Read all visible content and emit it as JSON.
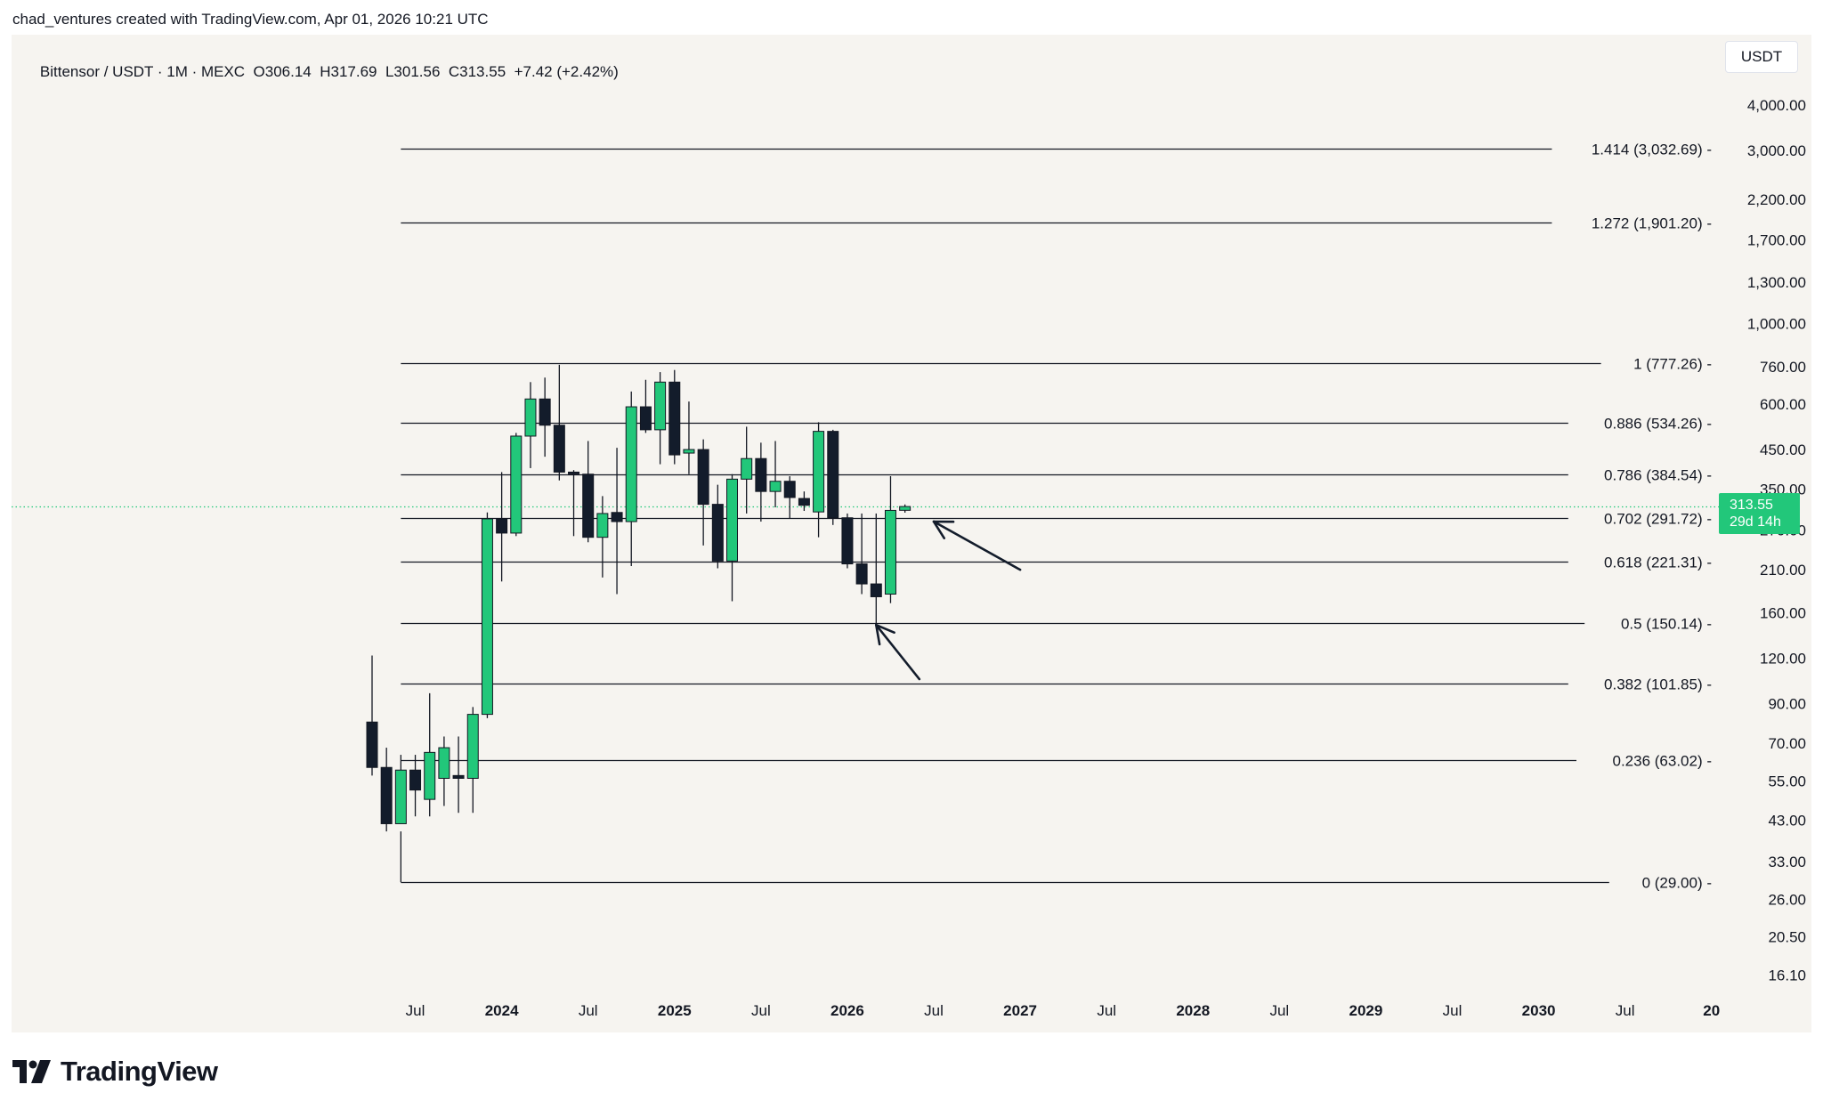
{
  "attribution": "chad_ventures created with TradingView.com, Apr 01, 2026 10:21 UTC",
  "legend": {
    "symbol": "Bittensor / USDT · 1M · MEXC",
    "open": "O306.14",
    "high": "H317.69",
    "low": "L301.56",
    "close": "C313.55",
    "change": "+7.42 (+2.42%)"
  },
  "currency": "USDT",
  "price_tag": {
    "price": "313.55",
    "countdown": "29d 14h"
  },
  "brand": "TradingView",
  "colors": {
    "background": "#f6f4f0",
    "up": "#22c77a",
    "down": "#131c2b",
    "fib_line": "#131722",
    "current_price_line": "#22c77a"
  },
  "chart_data": {
    "type": "candlestick",
    "title": "Bittensor / USDT · 1M · MEXC",
    "y_scale": "log",
    "ylim": [
      14.5,
      4600
    ],
    "y_ticks": [
      {
        "value": 4000,
        "label": "4,000.00"
      },
      {
        "value": 3000,
        "label": "3,000.00"
      },
      {
        "value": 2200,
        "label": "2,200.00"
      },
      {
        "value": 1700,
        "label": "1,700.00"
      },
      {
        "value": 1300,
        "label": "1,300.00"
      },
      {
        "value": 1000,
        "label": "1,000.00"
      },
      {
        "value": 760,
        "label": "760.00"
      },
      {
        "value": 600,
        "label": "600.00"
      },
      {
        "value": 450,
        "label": "450.00"
      },
      {
        "value": 350,
        "label": "350.00"
      },
      {
        "value": 270,
        "label": "270.00"
      },
      {
        "value": 210,
        "label": "210.00"
      },
      {
        "value": 160,
        "label": "160.00"
      },
      {
        "value": 120,
        "label": "120.00"
      },
      {
        "value": 90,
        "label": "90.00"
      },
      {
        "value": 70,
        "label": "70.00"
      },
      {
        "value": 55,
        "label": "55.00"
      },
      {
        "value": 43,
        "label": "43.00"
      },
      {
        "value": 33,
        "label": "33.00"
      },
      {
        "value": 26,
        "label": "26.00"
      },
      {
        "value": 20.5,
        "label": "20.50"
      },
      {
        "value": 16.1,
        "label": "16.10"
      }
    ],
    "x_ticks": [
      {
        "month": "2023-07",
        "label": "Jul",
        "bold": false
      },
      {
        "month": "2024-01",
        "label": "2024",
        "bold": true
      },
      {
        "month": "2024-07",
        "label": "Jul",
        "bold": false
      },
      {
        "month": "2025-01",
        "label": "2025",
        "bold": true
      },
      {
        "month": "2025-07",
        "label": "Jul",
        "bold": false
      },
      {
        "month": "2026-01",
        "label": "2026",
        "bold": true
      },
      {
        "month": "2026-07",
        "label": "Jul",
        "bold": false
      },
      {
        "month": "2027-01",
        "label": "2027",
        "bold": true
      },
      {
        "month": "2027-07",
        "label": "Jul",
        "bold": false
      },
      {
        "month": "2028-01",
        "label": "2028",
        "bold": true
      },
      {
        "month": "2028-07",
        "label": "Jul",
        "bold": false
      },
      {
        "month": "2029-01",
        "label": "2029",
        "bold": true
      },
      {
        "month": "2029-07",
        "label": "Jul",
        "bold": false
      },
      {
        "month": "2030-01",
        "label": "2030",
        "bold": true
      },
      {
        "month": "2030-07",
        "label": "Jul",
        "bold": false
      },
      {
        "month": "2031-01",
        "label": "20",
        "bold": true
      }
    ],
    "candles": [
      {
        "month": "2023-04",
        "o": 80,
        "h": 122,
        "l": 57,
        "c": 60
      },
      {
        "month": "2023-05",
        "o": 60,
        "h": 68,
        "l": 40,
        "c": 42
      },
      {
        "month": "2023-06",
        "o": 42,
        "h": 65,
        "l": 42,
        "c": 59
      },
      {
        "month": "2023-07",
        "o": 59,
        "h": 65,
        "l": 44,
        "c": 52
      },
      {
        "month": "2023-08",
        "o": 49,
        "h": 96,
        "l": 44,
        "c": 66
      },
      {
        "month": "2023-09",
        "o": 56,
        "h": 73,
        "l": 47,
        "c": 68
      },
      {
        "month": "2023-10",
        "o": 57,
        "h": 73,
        "l": 45,
        "c": 56
      },
      {
        "month": "2023-11",
        "o": 56,
        "h": 88,
        "l": 45,
        "c": 84
      },
      {
        "month": "2023-12",
        "o": 84,
        "h": 302,
        "l": 82,
        "c": 290
      },
      {
        "month": "2024-01",
        "o": 290,
        "h": 390,
        "l": 195,
        "c": 265
      },
      {
        "month": "2024-02",
        "o": 265,
        "h": 500,
        "l": 260,
        "c": 490
      },
      {
        "month": "2024-03",
        "o": 490,
        "h": 690,
        "l": 400,
        "c": 620
      },
      {
        "month": "2024-04",
        "o": 620,
        "h": 710,
        "l": 430,
        "c": 525
      },
      {
        "month": "2024-05",
        "o": 525,
        "h": 770,
        "l": 370,
        "c": 390
      },
      {
        "month": "2024-06",
        "o": 390,
        "h": 395,
        "l": 260,
        "c": 388
      },
      {
        "month": "2024-07",
        "o": 385,
        "h": 475,
        "l": 250,
        "c": 258
      },
      {
        "month": "2024-08",
        "o": 258,
        "h": 335,
        "l": 200,
        "c": 300
      },
      {
        "month": "2024-09",
        "o": 302,
        "h": 455,
        "l": 180,
        "c": 285
      },
      {
        "month": "2024-10",
        "o": 285,
        "h": 650,
        "l": 215,
        "c": 590
      },
      {
        "month": "2024-11",
        "o": 590,
        "h": 700,
        "l": 500,
        "c": 510
      },
      {
        "month": "2024-12",
        "o": 510,
        "h": 735,
        "l": 410,
        "c": 690
      },
      {
        "month": "2025-01",
        "o": 690,
        "h": 745,
        "l": 410,
        "c": 435
      },
      {
        "month": "2025-02",
        "o": 440,
        "h": 610,
        "l": 385,
        "c": 450
      },
      {
        "month": "2025-03",
        "o": 450,
        "h": 480,
        "l": 245,
        "c": 318
      },
      {
        "month": "2025-04",
        "o": 318,
        "h": 360,
        "l": 212,
        "c": 222
      },
      {
        "month": "2025-05",
        "o": 222,
        "h": 385,
        "l": 172,
        "c": 373
      },
      {
        "month": "2025-06",
        "o": 373,
        "h": 520,
        "l": 300,
        "c": 425
      },
      {
        "month": "2025-07",
        "o": 425,
        "h": 470,
        "l": 285,
        "c": 345
      },
      {
        "month": "2025-08",
        "o": 345,
        "h": 475,
        "l": 312,
        "c": 368
      },
      {
        "month": "2025-09",
        "o": 368,
        "h": 380,
        "l": 290,
        "c": 332
      },
      {
        "month": "2025-10",
        "o": 330,
        "h": 345,
        "l": 305,
        "c": 316
      },
      {
        "month": "2025-11",
        "o": 303,
        "h": 535,
        "l": 258,
        "c": 505
      },
      {
        "month": "2025-12",
        "o": 505,
        "h": 510,
        "l": 279,
        "c": 292
      },
      {
        "month": "2026-01",
        "o": 292,
        "h": 300,
        "l": 212,
        "c": 218
      },
      {
        "month": "2026-02",
        "o": 218,
        "h": 300,
        "l": 180,
        "c": 192
      },
      {
        "month": "2026-03",
        "o": 192,
        "h": 300,
        "l": 148,
        "c": 177
      },
      {
        "month": "2026-04",
        "o": 180,
        "h": 380,
        "l": 170,
        "c": 306
      },
      {
        "month": "2026-05",
        "o": 306.14,
        "h": 317.69,
        "l": 301.56,
        "c": 313.55
      }
    ],
    "fib_levels": [
      {
        "ratio": "0",
        "price": 29.0,
        "label": "0 (29.00)"
      },
      {
        "ratio": "0.236",
        "price": 63.02,
        "label": "0.236 (63.02)"
      },
      {
        "ratio": "0.382",
        "price": 101.85,
        "label": "0.382 (101.85)"
      },
      {
        "ratio": "0.5",
        "price": 150.14,
        "label": "0.5 (150.14)"
      },
      {
        "ratio": "0.618",
        "price": 221.31,
        "label": "0.618 (221.31)"
      },
      {
        "ratio": "0.702",
        "price": 291.72,
        "label": "0.702 (291.72)"
      },
      {
        "ratio": "0.786",
        "price": 384.54,
        "label": "0.786 (384.54)"
      },
      {
        "ratio": "0.886",
        "price": 534.26,
        "label": "0.886 (534.26)"
      },
      {
        "ratio": "1",
        "price": 777.26,
        "label": "1 (777.26)"
      },
      {
        "ratio": "1.272",
        "price": 1901.2,
        "label": "1.272 (1,901.20)"
      },
      {
        "ratio": "1.414",
        "price": 3032.69,
        "label": "1.414 (3,032.69)"
      }
    ],
    "fib_start_month": "2023-06",
    "current_price": 313.55,
    "arrows": [
      {
        "from_month": "2026-06",
        "from_price": 105,
        "to_month": "2026-03",
        "to_price": 148
      },
      {
        "from_month": "2027-01",
        "from_price": 210,
        "to_month": "2026-07",
        "to_price": 285
      }
    ]
  }
}
